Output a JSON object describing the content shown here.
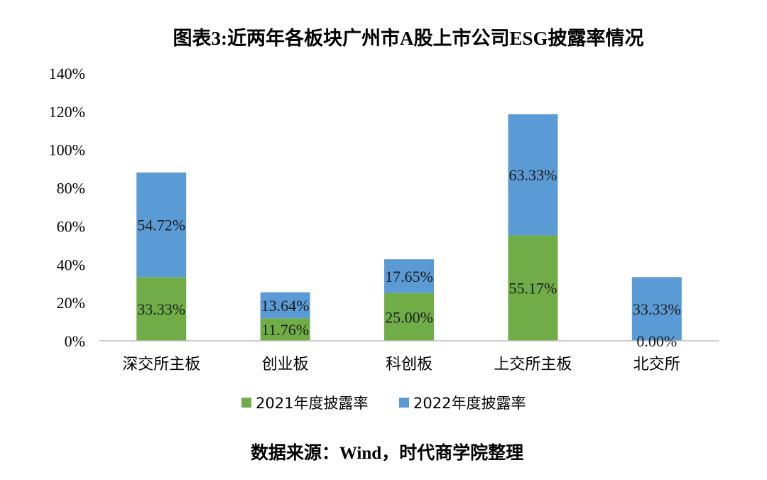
{
  "chart_data": {
    "type": "bar",
    "stacked": true,
    "title": "图表3:近两年各板块广州市A股上市公司ESG披露率情况",
    "categories": [
      "深交所主板",
      "创业板",
      "科创板",
      "上交所主板",
      "北交所"
    ],
    "series": [
      {
        "name": "2021年度披露率",
        "values": [
          33.33,
          11.76,
          25.0,
          55.17,
          0.0
        ],
        "labels": [
          "33.33%",
          "11.76%",
          "25.00%",
          "55.17%",
          "0.00%"
        ],
        "color": "#70ad47"
      },
      {
        "name": "2022年度披露率",
        "values": [
          54.72,
          13.64,
          17.65,
          63.33,
          33.33
        ],
        "labels": [
          "54.72%",
          "13.64%",
          "17.65%",
          "63.33%",
          "33.33%"
        ],
        "color": "#5b9bd5"
      }
    ],
    "ylim": [
      0,
      140
    ],
    "yticks": [
      "0%",
      "20%",
      "40%",
      "60%",
      "80%",
      "100%",
      "120%",
      "140%"
    ],
    "grid": false,
    "legend_position": "bottom",
    "xlabel": "",
    "ylabel": ""
  },
  "source_note": "数据来源：Wind，时代商学院整理"
}
